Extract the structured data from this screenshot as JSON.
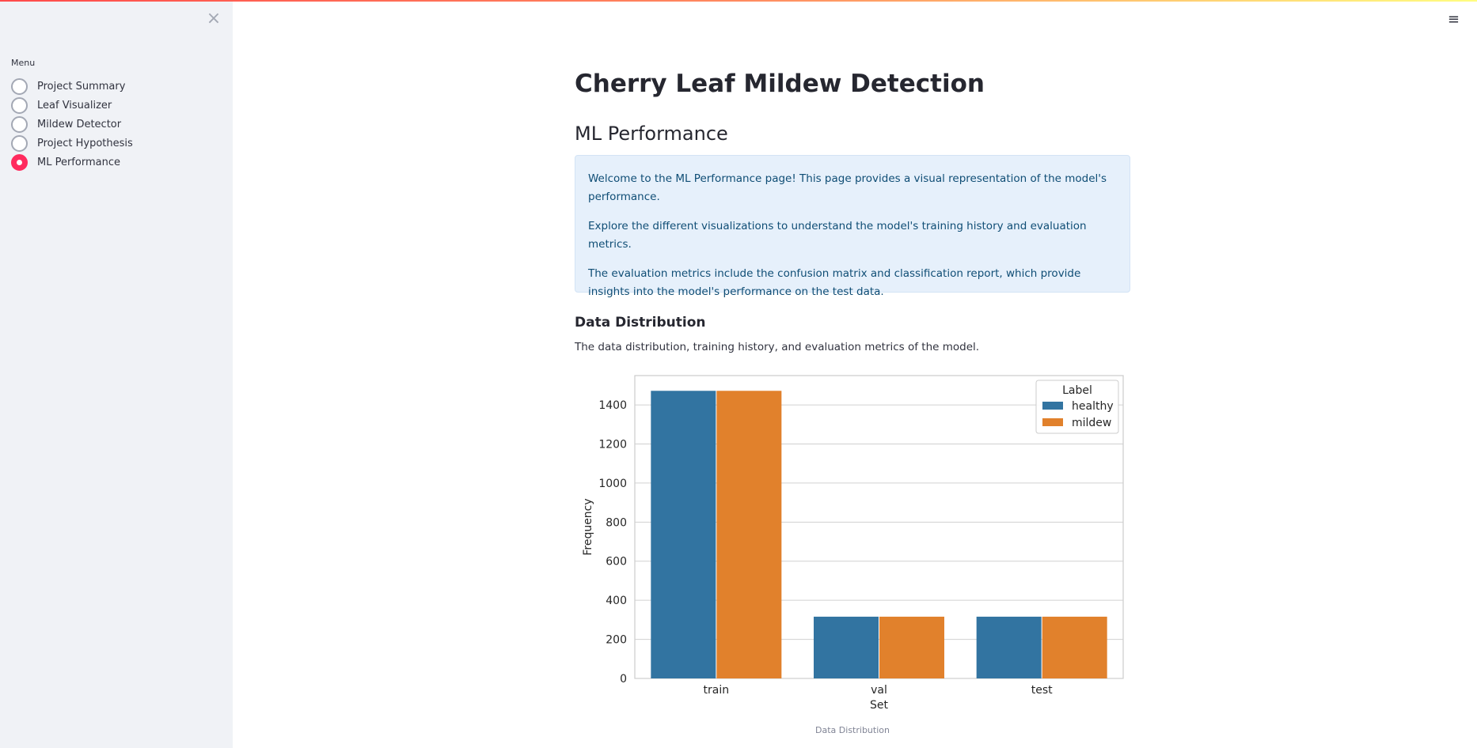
{
  "sidebar": {
    "close_icon": "×",
    "menu_label": "Menu",
    "items": [
      {
        "label": "Project Summary",
        "selected": false
      },
      {
        "label": "Leaf Visualizer",
        "selected": false
      },
      {
        "label": "Mildew Detector",
        "selected": false
      },
      {
        "label": "Project Hypothesis",
        "selected": false
      },
      {
        "label": "ML Performance",
        "selected": true
      }
    ]
  },
  "header": {
    "menu_icon": "≡"
  },
  "main": {
    "title": "Cherry Leaf Mildew Detection",
    "subtitle": "ML Performance",
    "info": [
      "Welcome to the ML Performance page! This page provides a visual representation of the model's performance.",
      "Explore the different visualizations to understand the model's training history and evaluation metrics.",
      "The evaluation metrics include the confusion matrix and classification report, which provide insights into the model's performance on the test data."
    ],
    "section_heading": "Data Distribution",
    "section_description": "The data distribution, training history, and evaluation metrics of the model.",
    "chart_caption": "Data Distribution"
  },
  "colors": {
    "accent": "#ff2b5e",
    "healthy": "#3274a1",
    "mildew": "#e1812c",
    "info_bg": "#e6f0fb",
    "info_text": "#0f4d75"
  },
  "chart_data": {
    "type": "bar",
    "categories": [
      "train",
      "val",
      "test"
    ],
    "series": [
      {
        "name": "healthy",
        "values": [
          1472,
          316,
          316
        ]
      },
      {
        "name": "mildew",
        "values": [
          1472,
          316,
          316
        ]
      }
    ],
    "xlabel": "Set",
    "ylabel": "Frequency",
    "ylim": [
      0,
      1550
    ],
    "yticks": [
      0,
      200,
      400,
      600,
      800,
      1000,
      1200,
      1400
    ],
    "legend_title": "Label",
    "legend_position": "top-right",
    "grid": true
  }
}
